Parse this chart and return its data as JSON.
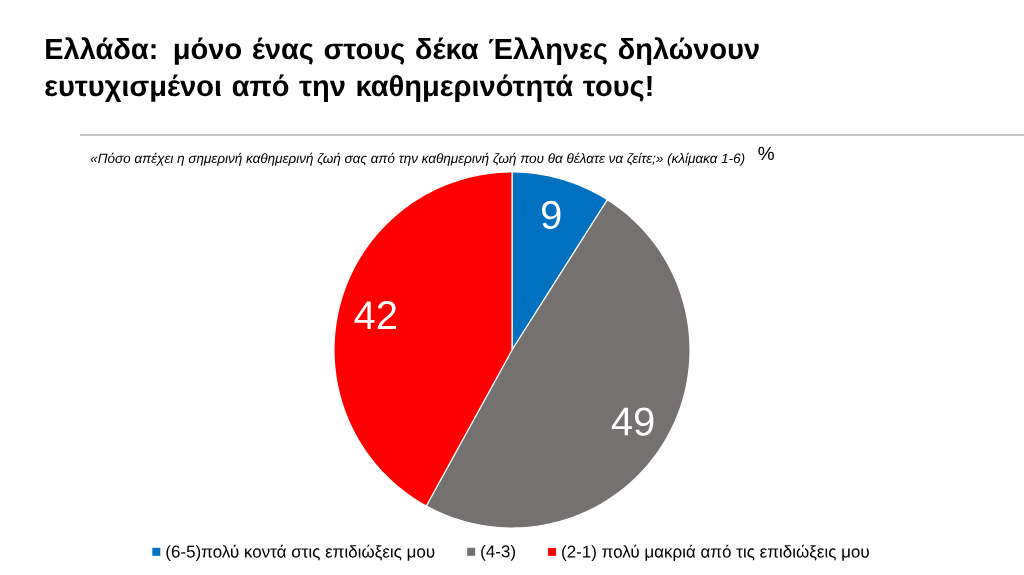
{
  "chart_data": {
    "type": "pie",
    "title": "Ελλάδα: μόνο ένας στους δέκα Έλληνες δηλώνουν ευτυχισμένοι από την καθημερινότητά τους!",
    "subtitle": "«Πόσο απέχει η σημερινή καθημερινή ζωή σας από την καθημερινή ζωή που θα θέλατε να ζείτε;» (κλίμακα 1-6)",
    "annotations": [
      "%"
    ],
    "categories": [
      "(6-5)πολύ κοντά στις επιδιώξεις μου",
      "(4-3)",
      "(2-1) πολύ μακριά από τις επιδιώξεις μου"
    ],
    "values": [
      9,
      49,
      42
    ],
    "colors": [
      "#0070c0",
      "#767171",
      "#ff0000"
    ],
    "data_labels": true,
    "legend": "bottom"
  }
}
